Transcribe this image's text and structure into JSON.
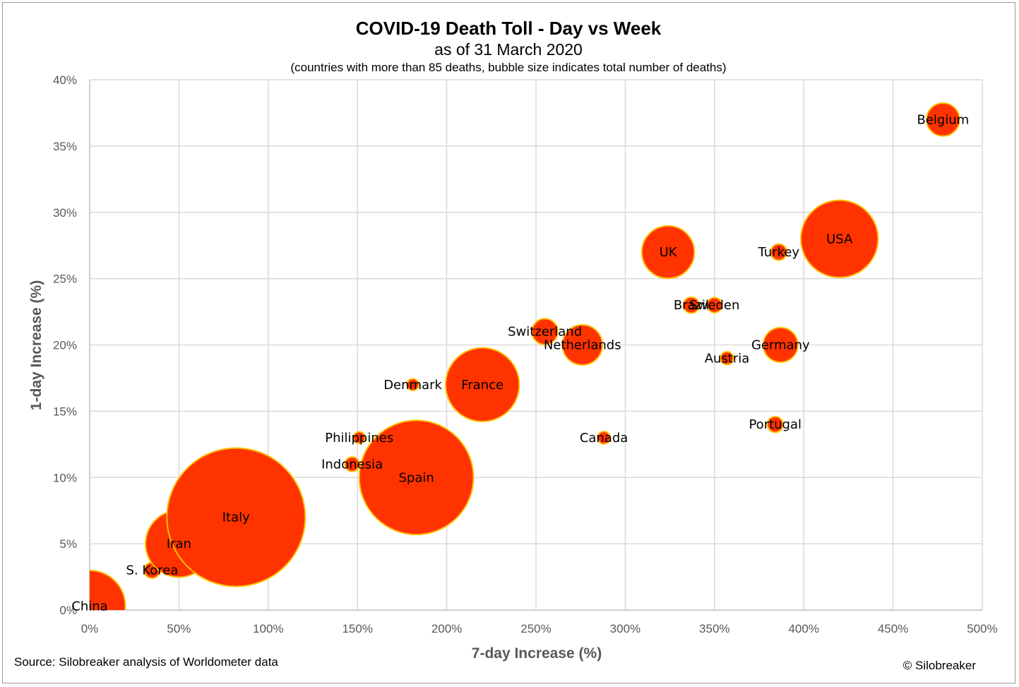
{
  "chart_data": {
    "type": "scatter",
    "title": "COVID-19 Death Toll - Day vs Week",
    "subtitle": "as of 31 March 2020",
    "note": "(countries with more than 85 deaths, bubble size indicates total number of deaths)",
    "xlabel": "7-day Increase (%)",
    "ylabel": "1-day Increase (%)",
    "xlim": [
      0,
      500
    ],
    "ylim": [
      0,
      40
    ],
    "x_ticks": [
      "0%",
      "50%",
      "100%",
      "150%",
      "200%",
      "250%",
      "300%",
      "350%",
      "400%",
      "450%",
      "500%"
    ],
    "y_ticks": [
      "0%",
      "5%",
      "10%",
      "15%",
      "20%",
      "25%",
      "30%",
      "35%",
      "40%"
    ],
    "grid": true,
    "bubble_color": "#ff3300",
    "bubble_edge_color": "#ffc000",
    "points": [
      {
        "label": "China",
        "x": 0,
        "y": 0.3,
        "size": 3300
      },
      {
        "label": "S. Korea",
        "x": 35,
        "y": 3,
        "size": 162
      },
      {
        "label": "Iran",
        "x": 50,
        "y": 5,
        "size": 2898
      },
      {
        "label": "Italy",
        "x": 82,
        "y": 7,
        "size": 12428
      },
      {
        "label": "Indonesia",
        "x": 147,
        "y": 11,
        "size": 136
      },
      {
        "label": "Philippines",
        "x": 151,
        "y": 13,
        "size": 88
      },
      {
        "label": "Spain",
        "x": 183,
        "y": 10,
        "size": 8464
      },
      {
        "label": "Denmark",
        "x": 181,
        "y": 17,
        "size": 90
      },
      {
        "label": "France",
        "x": 220,
        "y": 17,
        "size": 3523
      },
      {
        "label": "Switzerland",
        "x": 255,
        "y": 21,
        "size": 433
      },
      {
        "label": "Netherlands",
        "x": 276,
        "y": 20,
        "size": 1039
      },
      {
        "label": "Canada",
        "x": 288,
        "y": 13,
        "size": 101
      },
      {
        "label": "UK",
        "x": 324,
        "y": 27,
        "size": 1789
      },
      {
        "label": "Brazil",
        "x": 337,
        "y": 23,
        "size": 165
      },
      {
        "label": "Sweden",
        "x": 350,
        "y": 23,
        "size": 146
      },
      {
        "label": "Austria",
        "x": 357,
        "y": 19,
        "size": 108
      },
      {
        "label": "Portugal",
        "x": 384,
        "y": 14,
        "size": 160
      },
      {
        "label": "Turkey",
        "x": 386,
        "y": 27,
        "size": 168
      },
      {
        "label": "Germany",
        "x": 387,
        "y": 20,
        "size": 775
      },
      {
        "label": "USA",
        "x": 420,
        "y": 28,
        "size": 3873
      },
      {
        "label": "Belgium",
        "x": 478,
        "y": 37,
        "size": 705
      }
    ]
  },
  "footer": {
    "source": "Source: Silobreaker analysis of Worldometer data",
    "copyright": "© Silobreaker"
  }
}
